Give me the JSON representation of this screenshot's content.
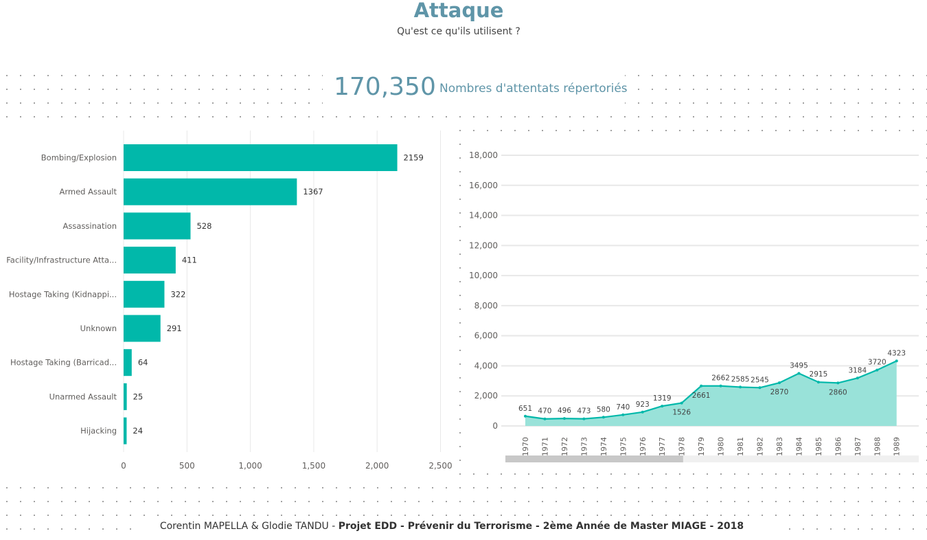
{
  "page": {
    "title": "Attaque",
    "subtitle": "Qu'est ce qu'ils utilisent ?",
    "kpi_value": "170,350",
    "kpi_label": "Nombres d'attentats répertoriés",
    "footer_normal": "Corentin MAPELLA & Glodie TANDU - ",
    "footer_bold": "Projet EDD - Prévenir du Terrorisme - 2ème Année de Master MIAGE - 2018"
  },
  "colors": {
    "accent": "#01b8aa",
    "area_fill": "#99e2d9",
    "title": "#5f95a8",
    "gridline": "#e8e8e8",
    "scrollbar_thumb": "#c8c8c8",
    "scrollbar_track": "#f0f0f0"
  },
  "chart_data": [
    {
      "type": "bar",
      "orientation": "horizontal",
      "categories": [
        "Bombing/Explosion",
        "Armed Assault",
        "Assassination",
        "Facility/Infrastructure Atta...",
        "Hostage Taking (Kidnappi...",
        "Unknown",
        "Hostage Taking (Barricad...",
        "Unarmed Assault",
        "Hijacking"
      ],
      "values": [
        2159,
        1367,
        528,
        411,
        322,
        291,
        64,
        25,
        24
      ],
      "xlim": [
        0,
        2500
      ],
      "x_ticks": [
        "0",
        "500",
        "1,000",
        "1,500",
        "2,000",
        "2,500"
      ],
      "x_tick_values": [
        0,
        500,
        1000,
        1500,
        2000,
        2500
      ],
      "grid": true,
      "data_labels": true
    },
    {
      "type": "area",
      "x": [
        "1970",
        "1971",
        "1972",
        "1973",
        "1974",
        "1975",
        "1976",
        "1977",
        "1978",
        "1979",
        "1980",
        "1981",
        "1982",
        "1983",
        "1984",
        "1985",
        "1986",
        "1987",
        "1988",
        "1989"
      ],
      "values": [
        651,
        470,
        496,
        473,
        580,
        740,
        923,
        1319,
        1526,
        2661,
        2662,
        2585,
        2545,
        2870,
        3495,
        2915,
        2860,
        3184,
        3720,
        4323
      ],
      "data_labels": [
        "651",
        "470",
        "496",
        "473",
        "580",
        "740",
        "923",
        "1319",
        "1526",
        "2661",
        "2662",
        "2585",
        "2545",
        "2870",
        "3495",
        "2915",
        "2860",
        "3184",
        "3720",
        "4323"
      ],
      "ylim": [
        0,
        18000
      ],
      "y_ticks": [
        "0",
        "2,000",
        "4,000",
        "6,000",
        "8,000",
        "10,000",
        "12,000",
        "14,000",
        "16,000",
        "18,000"
      ],
      "y_tick_values": [
        0,
        2000,
        4000,
        6000,
        8000,
        10000,
        12000,
        14000,
        16000,
        18000
      ],
      "grid": true,
      "scrollbar_visible_fraction": 0.43
    }
  ]
}
